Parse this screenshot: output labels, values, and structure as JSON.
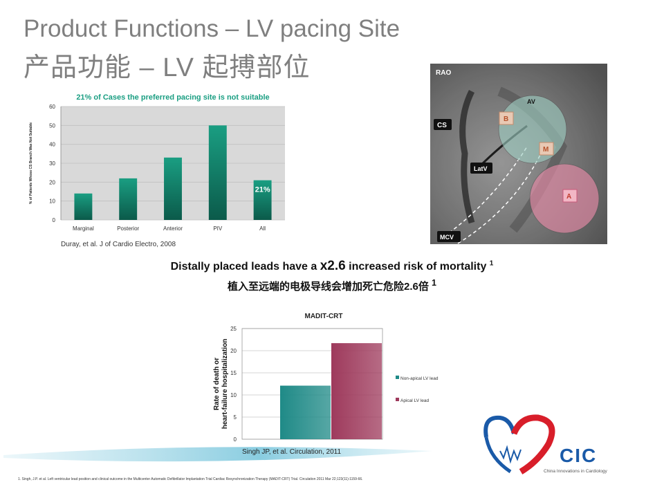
{
  "slide": {
    "title_en": "Product Functions – LV pacing Site",
    "title_cn": "产品功能 – LV 起搏部位",
    "headline_pre": "Distally placed leads have a ",
    "headline_big": "x2.6",
    "headline_post": " increased risk of mortality ",
    "headline_sup": "1",
    "headline_cn": "植入至远端的电极导线会增加死亡危险2.6倍 ",
    "headline_cn_sup": "1",
    "cite_chart1": "Duray, et al. J of Cardio Electro, 2008",
    "cite_chart2": "Singh JP,  et al. Circulation, 2011",
    "footnote": "1.  Singh, J.P. et al. Left ventricular lead position and clinical outcome in the Multicenter Automatic Defibrillator Implantation Trial Cardiac Resynchronization Therapy (MADIT-CRT) Trial. Circulation 2011 Mar 22;123(11):1159-66."
  },
  "xray": {
    "labels": [
      "RAO",
      "CS",
      "AV",
      "B",
      "M",
      "LatV",
      "A",
      "MCV"
    ],
    "colors": {
      "upper_circle": "#7fb3a6",
      "lower_circle": "#e07b9a",
      "letter_box": "#c58a6a"
    }
  },
  "logo": {
    "name": "CIC",
    "subtitle": "China Innovations in Cardiology",
    "colors": {
      "red": "#d81e2a",
      "blue": "#1a5aa8"
    }
  },
  "chart_data": [
    {
      "type": "bar",
      "title": "21% of Cases the preferred pacing site is not suitable",
      "ylabel": "% of Patients Whose CS Branch Was Not Suitable",
      "xlabel": "",
      "categories": [
        "Marginal",
        "Posterior",
        "Anterior",
        "PIV",
        "All"
      ],
      "values": [
        14,
        22,
        33,
        50,
        21
      ],
      "data_labels": [
        "",
        "",
        "",
        "",
        "21%"
      ],
      "ylim": [
        0,
        60
      ],
      "yticks": [
        0,
        10,
        20,
        30,
        40,
        50,
        60
      ],
      "grid": true,
      "colors": {
        "bar": "#1a9e82",
        "bar_dark": "#0b5a4a",
        "plot_bg": "#d9d9d9",
        "title": "#1a9e82"
      }
    },
    {
      "type": "bar",
      "title": "MADIT-CRT",
      "ylabel": "Rate of death or heart-failure hospitalization",
      "xlabel": "",
      "series": [
        {
          "name": "Non-apical LV lead",
          "values": [
            12.1
          ],
          "color": "#1f8a87"
        },
        {
          "name": "Apical LV lead",
          "values": [
            21.7
          ],
          "color": "#9e3a5c"
        }
      ],
      "ylim": [
        0,
        25
      ],
      "yticks": [
        0,
        5,
        10,
        15,
        20,
        25
      ],
      "grid": true,
      "legend": "right"
    }
  ]
}
